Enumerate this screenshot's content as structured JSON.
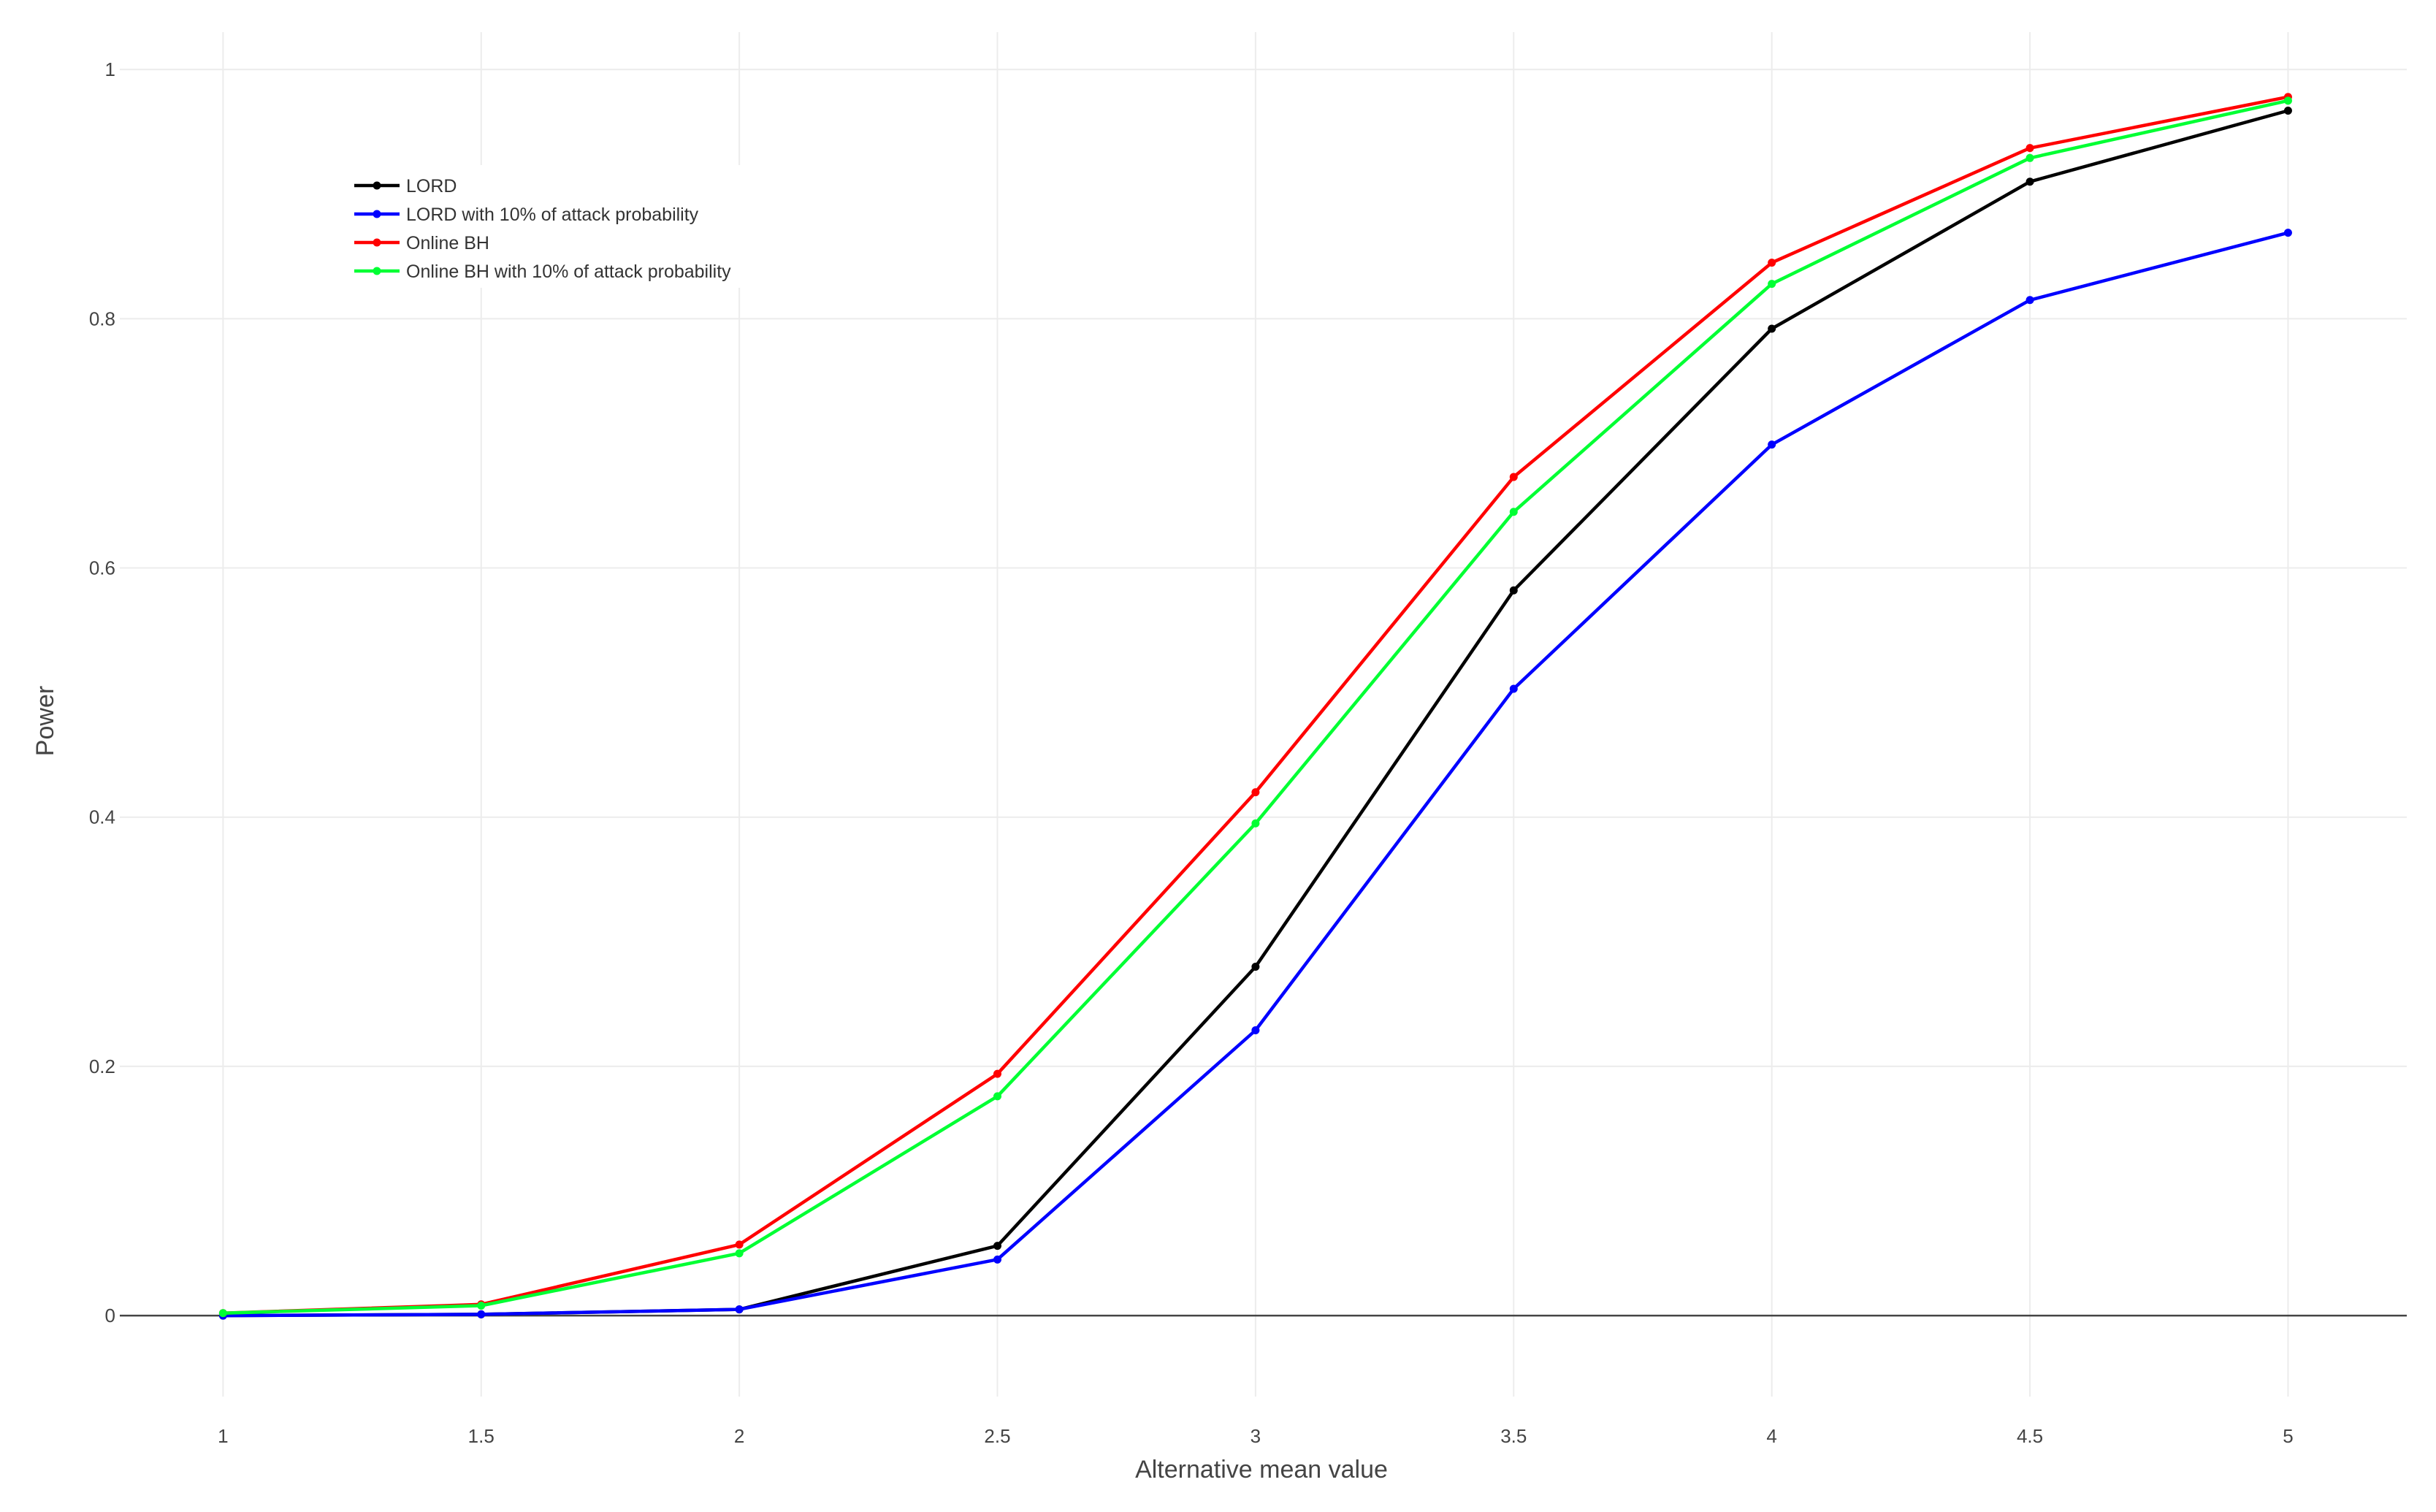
{
  "chart_data": {
    "type": "line",
    "title": "",
    "xlabel": "Alternative mean value",
    "ylabel": "Power",
    "x": [
      1,
      1.5,
      2,
      2.5,
      3,
      3.5,
      4,
      4.5,
      5
    ],
    "xlim": [
      0.8,
      5.23
    ],
    "ylim": [
      -0.065,
      1.03
    ],
    "x_ticks": [
      "1",
      "1.5",
      "2",
      "2.5",
      "3",
      "3.5",
      "4",
      "4.5",
      "5"
    ],
    "y_ticks": [
      "0",
      "0.2",
      "0.4",
      "0.6",
      "0.8",
      "1"
    ],
    "grid": true,
    "legend_position": "top-left",
    "series": [
      {
        "name": "LORD",
        "color": "#000000",
        "values": [
          0.0,
          0.001,
          0.005,
          0.056,
          0.28,
          0.582,
          0.792,
          0.91,
          0.967
        ]
      },
      {
        "name": "LORD with 10% of attack probability",
        "color": "#0000ff",
        "values": [
          0.0,
          0.001,
          0.005,
          0.045,
          0.229,
          0.503,
          0.699,
          0.815,
          0.869
        ]
      },
      {
        "name": "Online BH",
        "color": "#ff0000",
        "values": [
          0.002,
          0.009,
          0.057,
          0.194,
          0.42,
          0.673,
          0.845,
          0.937,
          0.978
        ]
      },
      {
        "name": "Online BH with 10% of attack probability",
        "color": "#00ff33",
        "values": [
          0.002,
          0.008,
          0.05,
          0.176,
          0.395,
          0.645,
          0.828,
          0.929,
          0.975
        ]
      }
    ]
  }
}
